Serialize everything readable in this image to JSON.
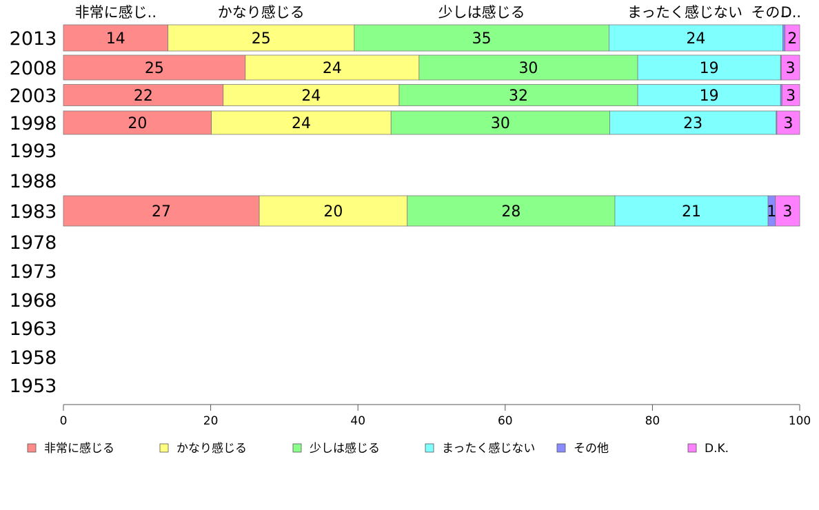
{
  "chart_data": {
    "type": "bar",
    "orientation": "horizontal",
    "stacked": true,
    "title": "",
    "xlabel": "",
    "ylabel": "",
    "xlim": [
      0,
      100
    ],
    "x_ticks": [
      0,
      20,
      40,
      60,
      80,
      100
    ],
    "grid": false,
    "legend_position": "bottom",
    "categories": [
      "2013",
      "2008",
      "2003",
      "1998",
      "1993",
      "1988",
      "1983",
      "1978",
      "1973",
      "1968",
      "1963",
      "1958",
      "1953"
    ],
    "top_labels": [
      "非常に感じ..",
      "かなり感じる",
      "少しは感じる",
      "まったく感じない",
      "その..",
      "D.."
    ],
    "series": [
      {
        "name": "非常に感じる",
        "color": "#ff8a8a",
        "values": [
          14.2,
          24.7,
          21.7,
          20.1,
          null,
          null,
          26.6,
          null,
          null,
          null,
          null,
          null,
          null
        ]
      },
      {
        "name": "かなり感じる",
        "color": "#ffff80",
        "values": [
          25.3,
          23.6,
          23.9,
          24.4,
          null,
          null,
          20.1,
          null,
          null,
          null,
          null,
          null,
          null
        ]
      },
      {
        "name": "少しは感じる",
        "color": "#8aff8a",
        "values": [
          34.6,
          29.7,
          32.4,
          29.7,
          null,
          null,
          28.2,
          null,
          null,
          null,
          null,
          null,
          null
        ]
      },
      {
        "name": "まったく感じない",
        "color": "#80ffff",
        "values": [
          23.6,
          19.4,
          19.4,
          22.6,
          null,
          null,
          20.8,
          null,
          null,
          null,
          null,
          null,
          null
        ]
      },
      {
        "name": "その他",
        "color": "#8a8aff",
        "values": [
          0.3,
          0.1,
          0.2,
          0.1,
          null,
          null,
          1.0,
          null,
          null,
          null,
          null,
          null,
          null
        ]
      },
      {
        "name": "D.K.",
        "color": "#ff80ff",
        "values": [
          2.0,
          2.5,
          2.4,
          3.1,
          null,
          null,
          3.3,
          null,
          null,
          null,
          null,
          null,
          null
        ]
      }
    ],
    "data_labels": [
      [
        "14",
        "25",
        "35",
        "24",
        "",
        "2"
      ],
      [
        "25",
        "24",
        "30",
        "19",
        "",
        "3"
      ],
      [
        "22",
        "24",
        "32",
        "19",
        "",
        "3"
      ],
      [
        "20",
        "24",
        "30",
        "23",
        "",
        "3"
      ],
      [
        "",
        "",
        "",
        "",
        "",
        ""
      ],
      [
        "",
        "",
        "",
        "",
        "",
        ""
      ],
      [
        "27",
        "20",
        "28",
        "21",
        "1",
        "3"
      ],
      [
        "",
        "",
        "",
        "",
        "",
        ""
      ],
      [
        "",
        "",
        "",
        "",
        "",
        ""
      ],
      [
        "",
        "",
        "",
        "",
        "",
        ""
      ],
      [
        "",
        "",
        "",
        "",
        "",
        ""
      ],
      [
        "",
        "",
        "",
        "",
        "",
        ""
      ],
      [
        "",
        "",
        "",
        "",
        "",
        ""
      ]
    ]
  }
}
